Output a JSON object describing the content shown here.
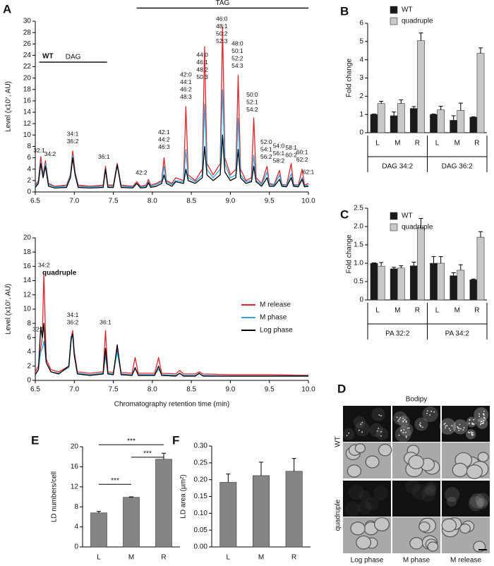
{
  "panel_labels": [
    "A",
    "B",
    "C",
    "D",
    "E",
    "F"
  ],
  "chart_data": [
    {
      "type": "line",
      "label": "WT",
      "y_label": "Level (x10⁷, AU)",
      "xlim": [
        6.5,
        10.0
      ],
      "xticks": [
        6.5,
        {
          "value": 7,
          "label": "7.0"
        },
        7.5,
        {
          "value": 8,
          "label": "8.0"
        },
        8.5,
        {
          "value": 9,
          "label": "9.0"
        },
        9.5,
        {
          "value": 10,
          "label": "10.0"
        }
      ],
      "ylim": [
        0,
        30
      ],
      "yticks": [
        0,
        2,
        4,
        6,
        8,
        10,
        12,
        14,
        16,
        18,
        20,
        22,
        24,
        26,
        28,
        30
      ],
      "x": [
        6.5,
        6.54,
        6.57,
        6.6,
        6.63,
        6.67,
        6.75,
        6.9,
        6.95,
        6.98,
        7.01,
        7.05,
        7.2,
        7.37,
        7.4,
        7.43,
        7.5,
        7.55,
        7.6,
        7.75,
        7.8,
        7.85,
        7.92,
        7.95,
        7.98,
        8.05,
        8.12,
        8.15,
        8.18,
        8.25,
        8.3,
        8.4,
        8.43,
        8.46,
        8.55,
        8.64,
        8.67,
        8.7,
        8.78,
        8.87,
        8.9,
        8.93,
        9.0,
        9.07,
        9.1,
        9.13,
        9.2,
        9.27,
        9.3,
        9.33,
        9.4,
        9.47,
        9.5,
        9.56,
        9.63,
        9.66,
        9.72,
        9.78,
        9.81,
        9.87,
        9.92,
        9.95,
        10.0
      ],
      "series": [
        {
          "name": "M release",
          "color": "#e2262c",
          "values": [
            1.2,
            2,
            6.2,
            3,
            5.5,
            1.5,
            1.0,
            1.2,
            3,
            7.2,
            3.5,
            1.2,
            1.0,
            1.2,
            4.5,
            1.2,
            1.2,
            5.0,
            1.2,
            1.0,
            1.8,
            1.0,
            1.2,
            2.2,
            1.2,
            1.5,
            2,
            6.0,
            2,
            1.5,
            2.5,
            2,
            15,
            3,
            2,
            4,
            25.5,
            5,
            3,
            5,
            29,
            6,
            3,
            4,
            20.5,
            4,
            2,
            2.5,
            13,
            2.5,
            1.5,
            4.5,
            1.5,
            1.3,
            3.8,
            1.3,
            1.2,
            5,
            1.3,
            1.2,
            4,
            1.2,
            1.5
          ]
        },
        {
          "name": "M phase",
          "color": "#2aa7df",
          "values": [
            1.0,
            1.8,
            5.3,
            2.8,
            5.0,
            1.3,
            0.9,
            1.0,
            2.8,
            6.4,
            3.2,
            1.0,
            0.9,
            1.0,
            4.0,
            1.0,
            1.0,
            4.7,
            1.0,
            0.9,
            1.5,
            0.9,
            1.0,
            1.8,
            1.0,
            1.3,
            1.8,
            4.5,
            1.8,
            1.3,
            2.0,
            1.8,
            7.5,
            2.5,
            1.8,
            3,
            15.5,
            4,
            2.5,
            4,
            18,
            5,
            2.5,
            3,
            13,
            3,
            1.8,
            2,
            6.5,
            2,
            1.3,
            3.5,
            1.3,
            1.2,
            3,
            1.2,
            1.1,
            3.2,
            1.2,
            1.1,
            2.5,
            1.1,
            1.2
          ]
        },
        {
          "name": "Log phase",
          "color": "#000000",
          "values": [
            0.8,
            1.5,
            5.0,
            2.5,
            4.5,
            1.0,
            0.7,
            0.8,
            2.5,
            6.0,
            3.0,
            0.8,
            0.7,
            0.8,
            4.0,
            0.8,
            0.8,
            4.8,
            0.8,
            0.7,
            1.5,
            0.7,
            0.8,
            1.6,
            0.8,
            1.0,
            1.5,
            3.0,
            1.5,
            1.0,
            1.8,
            1.5,
            4.0,
            2.0,
            1.5,
            2.5,
            8,
            3,
            2,
            3,
            10,
            3.5,
            2,
            2.5,
            7.5,
            2.5,
            1.5,
            1.8,
            4.5,
            1.8,
            1.0,
            2.5,
            1.0,
            1.0,
            2.2,
            1.0,
            0.9,
            2.5,
            1.0,
            0.9,
            2.2,
            0.9,
            1.0
          ]
        }
      ],
      "annotations": [
        {
          "lines": [
            "32:1"
          ],
          "x": 6.55,
          "y": 6.6
        },
        {
          "lines": [
            "34:2"
          ],
          "x": 6.69,
          "y": 6.0
        },
        {
          "lines": [
            "34:1",
            "36:2"
          ],
          "x": 6.98,
          "y": 8.2
        },
        {
          "lines": [
            "36:1"
          ],
          "x": 7.38,
          "y": 5.5
        },
        {
          "lines": [
            "42:2"
          ],
          "x": 7.86,
          "y": 2.7
        },
        {
          "lines": [
            "42:1",
            "44:2",
            "46:3"
          ],
          "x": 8.15,
          "y": 7.2
        },
        {
          "lines": [
            "42:0",
            "44:1",
            "46:2",
            "48:3"
          ],
          "x": 8.43,
          "y": 16.0
        },
        {
          "lines": [
            "44:0",
            "46:1",
            "48:2",
            "50:3"
          ],
          "x": 8.64,
          "y": 19.5
        },
        {
          "lines": [
            "46:0",
            "48:1",
            "50:2",
            "52:3"
          ],
          "x": 8.89,
          "y": 25.8
        },
        {
          "lines": [
            "48:0",
            "50:1",
            "52:2",
            "54:3"
          ],
          "x": 9.09,
          "y": 21.5
        },
        {
          "lines": [
            "50:0",
            "52:1",
            "54:2"
          ],
          "x": 9.28,
          "y": 13.8
        },
        {
          "lines": [
            "52:0",
            "54:1",
            "56:2"
          ],
          "x": 9.46,
          "y": 5.5
        },
        {
          "lines": [
            "54:0",
            "56:1",
            "58:2"
          ],
          "x": 9.62,
          "y": 4.8
        },
        {
          "lines": [
            "58:1",
            "60:2"
          ],
          "x": 9.78,
          "y": 5.8
        },
        {
          "lines": [
            "60:1",
            "62:2"
          ],
          "x": 9.92,
          "y": 5.0
        },
        {
          "lines": [
            "62:1"
          ],
          "x": 10.0,
          "y": 2.8
        }
      ],
      "brackets": [
        {
          "label": "DAG",
          "x": [
            6.55,
            7.42
          ],
          "y": 22.8
        },
        {
          "label": "TAG",
          "x": [
            7.8,
            10.0
          ],
          "y": 32.3
        }
      ]
    },
    {
      "type": "line",
      "label": "quadruple",
      "x_label": "Chromatography retention time (min)",
      "y_label": "Level (x10⁷, AU)",
      "legend": "right",
      "xlim": [
        6.5,
        10.0
      ],
      "xticks": [
        6.5,
        {
          "value": 7,
          "label": "7.0"
        },
        7.5,
        {
          "value": 8,
          "label": "8.0"
        },
        8.5,
        {
          "value": 9,
          "label": "9.0"
        },
        9.5,
        {
          "value": 10,
          "label": "10.0"
        }
      ],
      "ylim": [
        0,
        20
      ],
      "yticks": [
        0,
        2,
        4,
        6,
        8,
        10,
        12,
        14,
        16,
        18,
        20
      ],
      "x": [
        6.5,
        6.54,
        6.57,
        6.59,
        6.61,
        6.64,
        6.7,
        6.8,
        6.93,
        6.96,
        6.98,
        7.0,
        7.04,
        7.2,
        7.37,
        7.4,
        7.43,
        7.5,
        7.55,
        7.6,
        7.74,
        7.78,
        7.82,
        8.03,
        8.08,
        8.12,
        8.3,
        8.35,
        8.4,
        8.55,
        8.6,
        8.65,
        9.0,
        9.5,
        10.0
      ],
      "series": [
        {
          "name": "M release",
          "color": "#e2262c",
          "values": [
            1.2,
            2,
            4.5,
            6,
            15,
            3,
            1.5,
            1.2,
            2,
            6,
            7,
            4,
            1.2,
            1.0,
            1.2,
            7,
            1.2,
            1.1,
            4.5,
            1.1,
            1.0,
            3.2,
            1.0,
            1.0,
            3.2,
            1.0,
            0.9,
            1.4,
            0.9,
            0.9,
            1.2,
            0.9,
            0.8,
            0.8,
            0.7
          ]
        },
        {
          "name": "M phase",
          "color": "#2aa7df",
          "values": [
            0.9,
            1.5,
            4.0,
            4.5,
            5.5,
            2.5,
            1.2,
            1.0,
            1.8,
            5.5,
            6.5,
            3.5,
            1.0,
            0.8,
            1.0,
            3.5,
            1.0,
            0.9,
            4.0,
            0.9,
            0.8,
            1.6,
            0.8,
            0.8,
            1.6,
            0.8,
            0.7,
            1.0,
            0.7,
            0.7,
            0.9,
            0.7,
            0.6,
            0.6,
            0.6
          ]
        },
        {
          "name": "Log phase",
          "color": "#000000",
          "values": [
            0.8,
            1.5,
            7.5,
            6,
            8,
            2.5,
            1.2,
            0.9,
            2,
            6,
            6.5,
            3.5,
            0.9,
            0.7,
            0.9,
            4.5,
            0.9,
            0.8,
            5,
            0.8,
            0.7,
            1.8,
            0.7,
            0.7,
            2,
            0.7,
            0.6,
            1.0,
            0.6,
            0.6,
            1.0,
            0.6,
            0.6,
            0.6,
            0.6
          ]
        }
      ],
      "annotations": [
        {
          "lines": [
            "32:1"
          ],
          "x": 6.54,
          "y": 6.6
        },
        {
          "lines": [
            "34:2"
          ],
          "x": 6.61,
          "y": 15.6
        },
        {
          "lines": [
            "34:1",
            "36:2"
          ],
          "x": 6.98,
          "y": 7.6
        },
        {
          "lines": [
            "36:1"
          ],
          "x": 7.4,
          "y": 7.6
        }
      ]
    },
    {
      "type": "bar",
      "y_label": "Fold change",
      "legend": "top-left",
      "categories": [
        "L",
        "M",
        "R",
        "L",
        "M",
        "R"
      ],
      "groups": [
        "DAG 34:2",
        "DAG 36:2"
      ],
      "ylim": [
        0,
        6
      ],
      "yticks": [
        0,
        1,
        2,
        3,
        4,
        5,
        6
      ],
      "series": [
        {
          "name": "WT",
          "color": "#1a1a1a",
          "values": [
            1.0,
            0.93,
            1.33,
            1.0,
            0.68,
            0.85
          ],
          "errors": [
            0.02,
            0.2,
            0.1,
            0.02,
            0.25,
            0.02
          ]
        },
        {
          "name": "quadruple",
          "color": "#c8c8c8",
          "values": [
            1.6,
            1.6,
            5.05,
            1.25,
            1.22,
            4.35
          ],
          "errors": [
            0.12,
            0.2,
            0.42,
            0.2,
            0.4,
            0.3
          ]
        }
      ]
    },
    {
      "type": "bar",
      "y_label": "Fold change",
      "legend": "top-left",
      "categories": [
        "L",
        "M",
        "R",
        "L",
        "M",
        "R"
      ],
      "groups": [
        "PA 32:2",
        "PA 34:2"
      ],
      "ylim": [
        0,
        2.5
      ],
      "yticks": [
        0,
        0.5,
        {
          "value": 1,
          "label": "1.0"
        },
        1.5,
        {
          "value": 2,
          "label": "2.0"
        },
        2.5
      ],
      "series": [
        {
          "name": "WT",
          "color": "#1a1a1a",
          "values": [
            1.0,
            0.85,
            0.93,
            1.0,
            0.66,
            0.55
          ],
          "errors": [
            0.01,
            0.04,
            0.1,
            0.18,
            0.08,
            0.02
          ]
        },
        {
          "name": "quadruple",
          "color": "#c8c8c8",
          "values": [
            0.92,
            0.87,
            1.97,
            1.0,
            0.81,
            1.71
          ],
          "errors": [
            0.1,
            0.06,
            0.25,
            0.18,
            0.15,
            0.15
          ]
        }
      ]
    },
    {
      "type": "bar",
      "y_label": "LD numbers/cell",
      "color": "#858585",
      "categories": [
        "L",
        "M",
        "R"
      ],
      "values": [
        6.8,
        9.9,
        17.5
      ],
      "errors": [
        0.3,
        0.1,
        1.2
      ],
      "ylim": [
        0,
        20
      ],
      "yticks": [
        0,
        4,
        8,
        12,
        16,
        20
      ],
      "significance": [
        {
          "label": "***",
          "between": [
            0,
            1
          ],
          "y": 12.5
        },
        {
          "label": "***",
          "between": [
            0,
            2
          ],
          "y": 20.4
        },
        {
          "label": "***",
          "between": [
            1,
            2
          ],
          "y": 17.9
        }
      ]
    },
    {
      "type": "bar",
      "y_label": "LD area (µm²)",
      "color": "#858585",
      "categories": [
        "L",
        "M",
        "R"
      ],
      "values": [
        0.192,
        0.212,
        0.225
      ],
      "errors": [
        0.025,
        0.04,
        0.038
      ],
      "ylim": [
        0,
        0.3
      ],
      "yticks": [
        {
          "value": 0,
          "label": "0.00"
        },
        0.05,
        {
          "value": 0.1,
          "label": "0.10"
        },
        0.15,
        {
          "value": 0.2,
          "label": "0.20"
        },
        0.25,
        {
          "value": 0.3,
          "label": "0.30"
        }
      ]
    }
  ],
  "microscopy": {
    "title": "Bodipy",
    "rows": [
      "WT",
      "quadruple"
    ],
    "columns": [
      "Log phase",
      "M phase",
      "M release"
    ]
  }
}
